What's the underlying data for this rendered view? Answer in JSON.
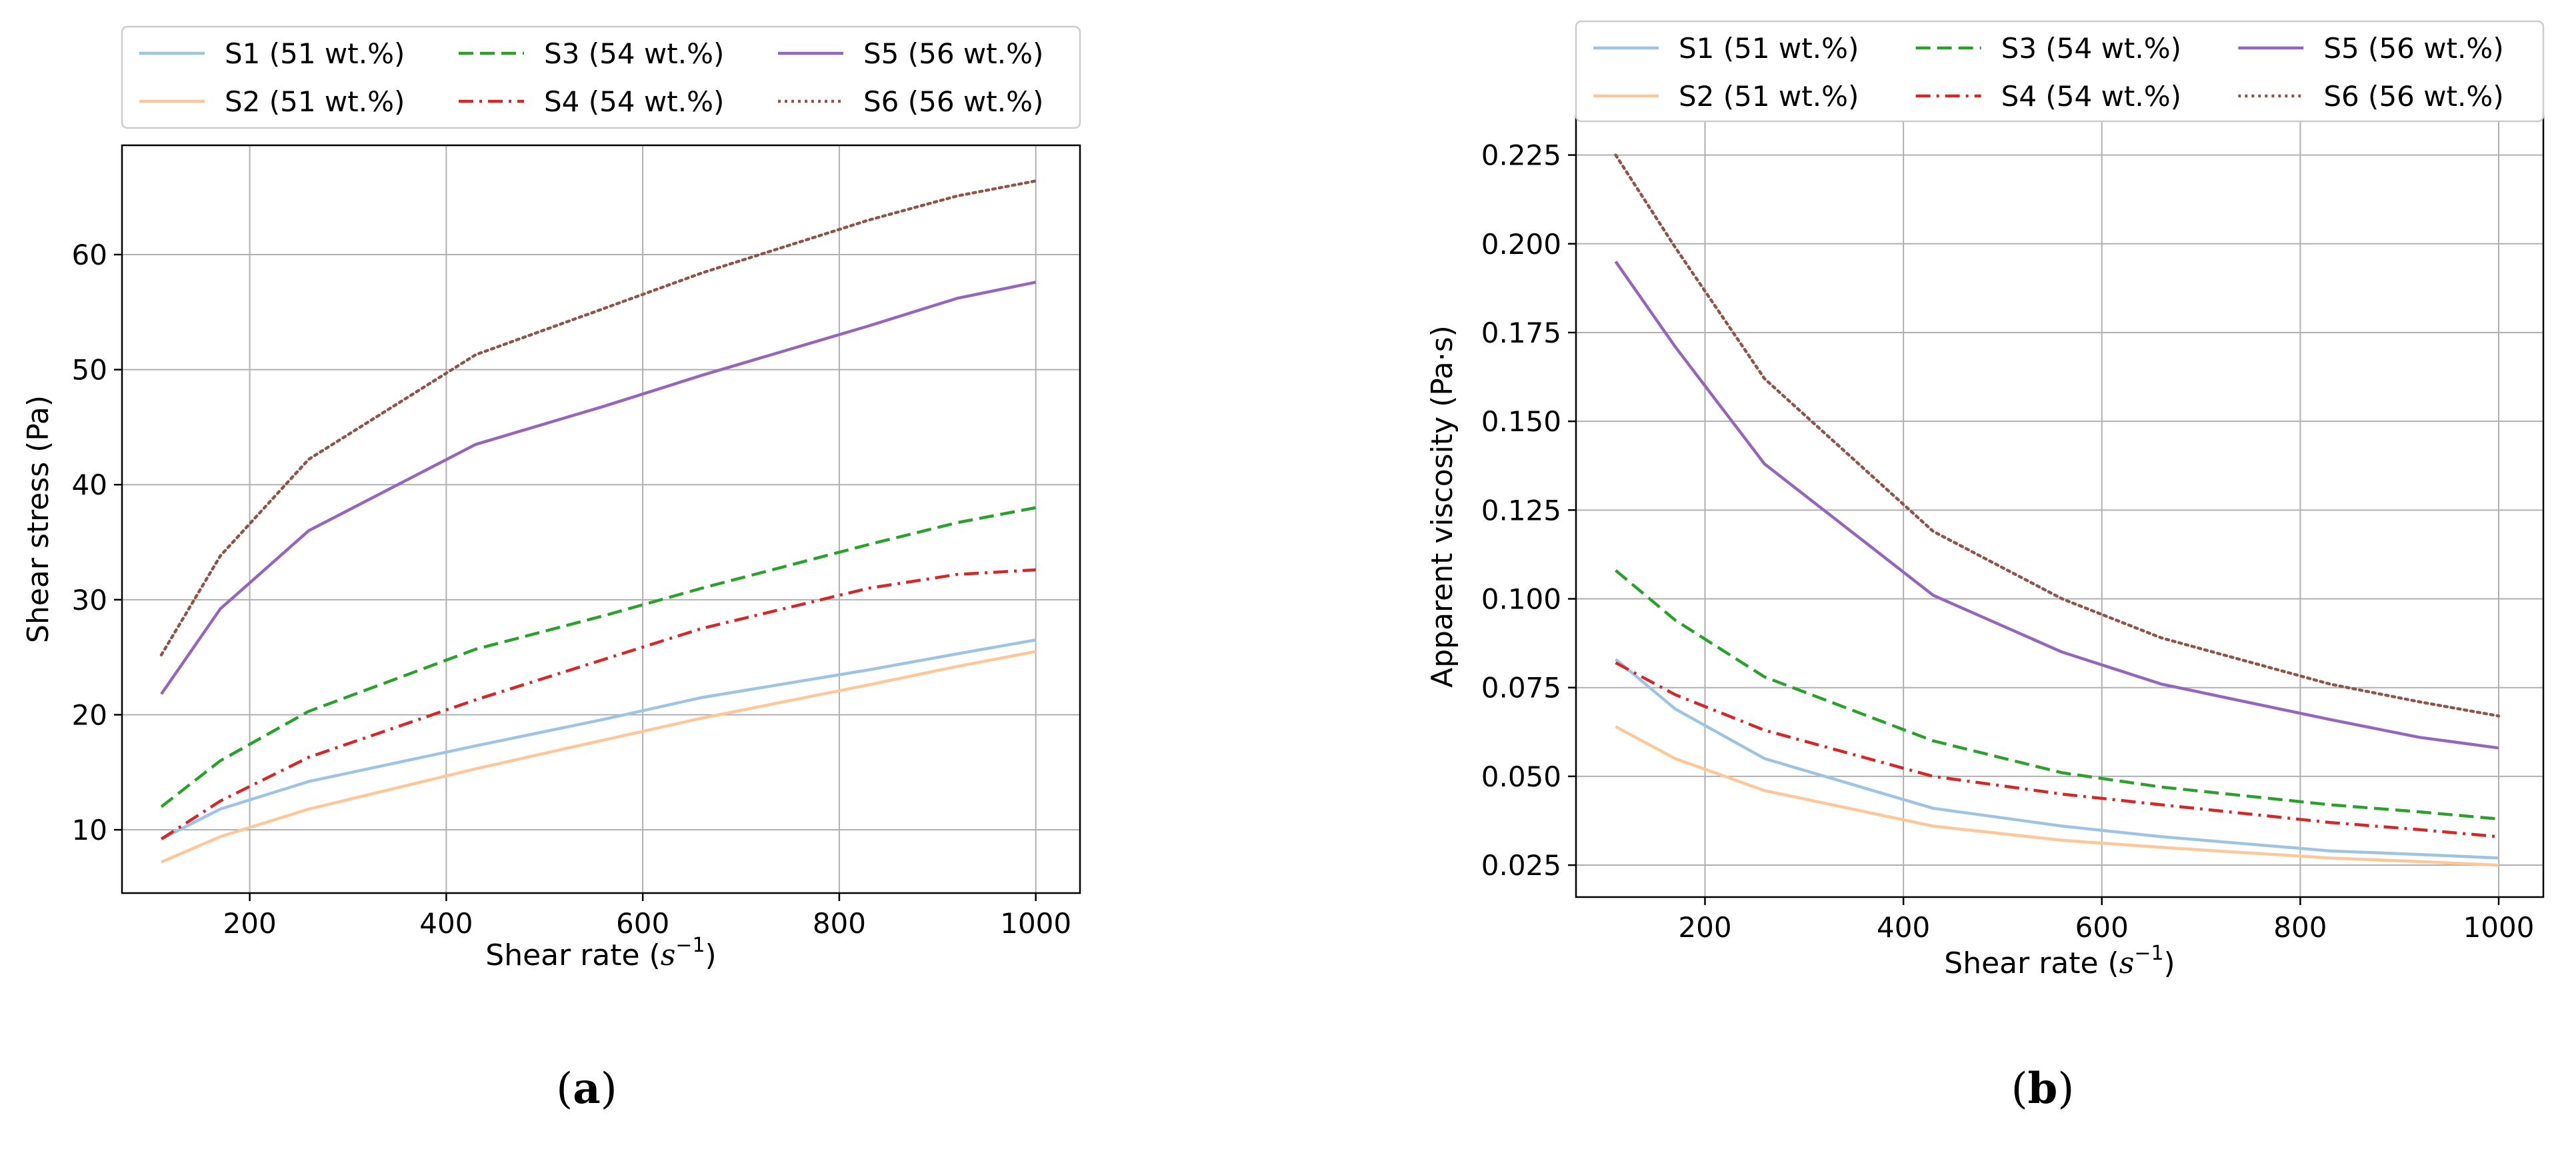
{
  "chart_data": [
    {
      "type": "line",
      "panel_label": "(a)",
      "title": "",
      "xlabel": "Shear rate",
      "xlabel_unit_base": "s",
      "xlabel_unit_exp": "−1",
      "ylabel": "Shear stress (Pa)",
      "xlim": [
        70,
        1045
      ],
      "ylim": [
        4.5,
        69.5
      ],
      "xticks": [
        200,
        400,
        600,
        800,
        1000
      ],
      "yticks": [
        10,
        20,
        30,
        40,
        50,
        60
      ],
      "xtick_labels": [
        "200",
        "400",
        "600",
        "800",
        "1000"
      ],
      "ytick_labels": [
        "10",
        "20",
        "30",
        "40",
        "50",
        "60"
      ],
      "grid": true,
      "legend_position": "top (above plot)",
      "series": [
        {
          "name": "S1 (51 wt.%)",
          "color": "#9ec3e3",
          "dash": "solid",
          "x": [
            110,
            170,
            260,
            430,
            560,
            660,
            830,
            920,
            1000
          ],
          "y": [
            9.2,
            11.8,
            14.2,
            17.3,
            19.6,
            21.5,
            23.9,
            25.3,
            26.5
          ]
        },
        {
          "name": "S2 (51 wt.%)",
          "color": "#fdc79a",
          "dash": "solid",
          "x": [
            110,
            170,
            260,
            430,
            560,
            660,
            830,
            920,
            1000
          ],
          "y": [
            7.2,
            9.4,
            11.8,
            15.3,
            17.8,
            19.7,
            22.6,
            24.2,
            25.5
          ]
        },
        {
          "name": "S3 (54 wt.%)",
          "color": "#2ca02c",
          "dash": "dashed",
          "x": [
            110,
            170,
            260,
            430,
            560,
            660,
            830,
            920,
            1000
          ],
          "y": [
            12.0,
            16.0,
            20.3,
            25.7,
            28.6,
            31.0,
            34.8,
            36.7,
            38.0
          ]
        },
        {
          "name": "S4 (54 wt.%)",
          "color": "#d62728",
          "dash": "dashdot",
          "x": [
            110,
            170,
            260,
            430,
            560,
            660,
            830,
            920,
            1000
          ],
          "y": [
            9.2,
            12.5,
            16.3,
            21.3,
            24.8,
            27.5,
            31.0,
            32.2,
            32.6
          ]
        },
        {
          "name": "S5 (56 wt.%)",
          "color": "#9467bd",
          "dash": "solid",
          "x": [
            110,
            170,
            260,
            430,
            560,
            660,
            830,
            920,
            1000
          ],
          "y": [
            21.8,
            29.2,
            36.0,
            43.5,
            46.8,
            49.5,
            53.8,
            56.2,
            57.6
          ]
        },
        {
          "name": "S6 (56 wt.%)",
          "color": "#8c564b",
          "dash": "dotted",
          "x": [
            110,
            170,
            260,
            430,
            560,
            660,
            830,
            920,
            1000
          ],
          "y": [
            25.2,
            33.8,
            42.2,
            51.3,
            55.3,
            58.4,
            63.0,
            65.1,
            66.4
          ]
        }
      ]
    },
    {
      "type": "line",
      "panel_label": "(b)",
      "title": "",
      "xlabel": "Shear rate",
      "xlabel_unit_base": "s",
      "xlabel_unit_exp": "−1",
      "ylabel": "Apparent viscosity (Pa·s)",
      "xlim": [
        70,
        1045
      ],
      "ylim": [
        0.016,
        0.236
      ],
      "xticks": [
        200,
        400,
        600,
        800,
        1000
      ],
      "yticks": [
        0.025,
        0.05,
        0.075,
        0.1,
        0.125,
        0.15,
        0.175,
        0.2,
        0.225
      ],
      "xtick_labels": [
        "200",
        "400",
        "600",
        "800",
        "1000"
      ],
      "ytick_labels": [
        "0.025",
        "0.050",
        "0.075",
        "0.100",
        "0.125",
        "0.150",
        "0.175",
        "0.200",
        "0.225"
      ],
      "grid": true,
      "legend_position": "top (above plot)",
      "series": [
        {
          "name": "S1 (51 wt.%)",
          "color": "#9ec3e3",
          "dash": "solid",
          "x": [
            110,
            170,
            260,
            430,
            560,
            660,
            830,
            920,
            1000
          ],
          "y": [
            0.083,
            0.069,
            0.055,
            0.041,
            0.036,
            0.033,
            0.029,
            0.028,
            0.027
          ]
        },
        {
          "name": "S2 (51 wt.%)",
          "color": "#fdc79a",
          "dash": "solid",
          "x": [
            110,
            170,
            260,
            430,
            560,
            660,
            830,
            920,
            1000
          ],
          "y": [
            0.064,
            0.055,
            0.046,
            0.036,
            0.032,
            0.03,
            0.027,
            0.026,
            0.025
          ]
        },
        {
          "name": "S3 (54 wt.%)",
          "color": "#2ca02c",
          "dash": "dashed",
          "x": [
            110,
            170,
            260,
            430,
            560,
            660,
            830,
            920,
            1000
          ],
          "y": [
            0.108,
            0.094,
            0.078,
            0.06,
            0.051,
            0.047,
            0.042,
            0.04,
            0.038
          ]
        },
        {
          "name": "S4 (54 wt.%)",
          "color": "#d62728",
          "dash": "dashdot",
          "x": [
            110,
            170,
            260,
            430,
            560,
            660,
            830,
            920,
            1000
          ],
          "y": [
            0.082,
            0.073,
            0.063,
            0.05,
            0.045,
            0.042,
            0.037,
            0.035,
            0.033
          ]
        },
        {
          "name": "S5 (56 wt.%)",
          "color": "#9467bd",
          "dash": "solid",
          "x": [
            110,
            170,
            260,
            430,
            560,
            660,
            830,
            920,
            1000
          ],
          "y": [
            0.195,
            0.171,
            0.138,
            0.101,
            0.085,
            0.076,
            0.066,
            0.061,
            0.058
          ]
        },
        {
          "name": "S6 (56 wt.%)",
          "color": "#8c564b",
          "dash": "dotted",
          "x": [
            110,
            170,
            260,
            430,
            560,
            660,
            830,
            920,
            1000
          ],
          "y": [
            0.225,
            0.199,
            0.162,
            0.119,
            0.1,
            0.089,
            0.076,
            0.071,
            0.067
          ]
        }
      ]
    }
  ]
}
